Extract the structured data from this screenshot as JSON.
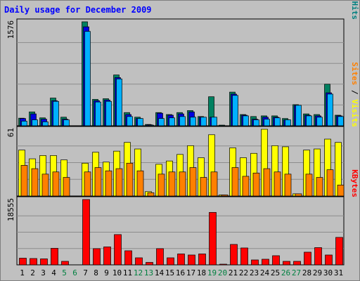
{
  "title": "Daily usage for December 2009",
  "panels": {
    "top": {
      "max_label": "1576",
      "legend": [
        {
          "text": "Pages",
          "color": "#00c0ff"
        },
        {
          "text": " / ",
          "color": "#000000"
        },
        {
          "text": "Files",
          "color": "#0000ff"
        },
        {
          "text": " / ",
          "color": "#000000"
        },
        {
          "text": "Hits",
          "color": "#008080"
        }
      ]
    },
    "mid": {
      "max_label": "61",
      "legend": [
        {
          "text": "Sites",
          "color": "#ff8000"
        },
        {
          "text": " / ",
          "color": "#000000"
        },
        {
          "text": "Visits",
          "color": "#ffff00"
        }
      ]
    },
    "bot": {
      "max_label": "18555",
      "legend": [
        {
          "text": "KBytes",
          "color": "#ff0000"
        }
      ]
    }
  },
  "colors": {
    "hits": "#008060",
    "files": "#0000e0",
    "pages": "#00b0ff",
    "visits": "#ffff00",
    "sites": "#ff8000",
    "kbytes": "#ff0000",
    "weekday_label": "#000000",
    "weekend_label": "#008040"
  },
  "chart_data": [
    {
      "type": "bar",
      "title": "Daily usage for December 2009",
      "categories": [
        "1",
        "2",
        "3",
        "4",
        "5",
        "6",
        "7",
        "8",
        "9",
        "10",
        "11",
        "12",
        "13",
        "14",
        "15",
        "16",
        "17",
        "18",
        "19",
        "20",
        "21",
        "22",
        "23",
        "24",
        "25",
        "26",
        "27",
        "28",
        "29",
        "30",
        "31"
      ],
      "weekend_days": [
        "5",
        "6",
        "12",
        "13",
        "19",
        "20",
        "26",
        "27"
      ],
      "ylim": [
        0,
        1576
      ],
      "series": [
        {
          "name": "Hits",
          "values": [
            115,
            210,
            120,
            420,
            130,
            5,
            1576,
            400,
            410,
            770,
            200,
            130,
            20,
            200,
            170,
            200,
            230,
            140,
            440,
            10,
            510,
            170,
            140,
            150,
            150,
            110,
            320,
            180,
            170,
            630,
            160
          ]
        },
        {
          "name": "Files",
          "values": [
            110,
            180,
            100,
            380,
            100,
            0,
            1500,
            380,
            390,
            730,
            170,
            110,
            15,
            190,
            160,
            180,
            210,
            130,
            130,
            0,
            480,
            160,
            100,
            130,
            130,
            90,
            310,
            160,
            150,
            500,
            150
          ]
        },
        {
          "name": "Pages",
          "values": [
            70,
            90,
            60,
            370,
            90,
            0,
            1430,
            360,
            370,
            710,
            140,
            110,
            10,
            110,
            120,
            140,
            130,
            130,
            130,
            0,
            460,
            150,
            90,
            100,
            120,
            90,
            310,
            150,
            130,
            480,
            140
          ]
        }
      ]
    },
    {
      "type": "bar",
      "categories": [
        "1",
        "2",
        "3",
        "4",
        "5",
        "6",
        "7",
        "8",
        "9",
        "10",
        "11",
        "12",
        "13",
        "14",
        "15",
        "16",
        "17",
        "18",
        "19",
        "20",
        "21",
        "22",
        "23",
        "24",
        "25",
        "26",
        "27",
        "28",
        "29",
        "30",
        "31"
      ],
      "ylim": [
        0,
        61
      ],
      "series": [
        {
          "name": "Visits",
          "values": [
            42,
            34,
            37,
            37,
            33,
            0,
            30,
            40,
            31,
            41,
            49,
            43,
            4,
            29,
            32,
            38,
            46,
            35,
            56,
            1,
            44,
            35,
            39,
            61,
            46,
            45,
            2,
            42,
            43,
            52,
            49
          ]
        },
        {
          "name": "Sites",
          "values": [
            28,
            25,
            20,
            22,
            17,
            0,
            22,
            26,
            23,
            25,
            30,
            23,
            3,
            20,
            22,
            22,
            26,
            17,
            22,
            1,
            26,
            18,
            21,
            25,
            22,
            20,
            2,
            20,
            17,
            24,
            10
          ]
        }
      ]
    },
    {
      "type": "bar",
      "categories": [
        "1",
        "2",
        "3",
        "4",
        "5",
        "6",
        "7",
        "8",
        "9",
        "10",
        "11",
        "12",
        "13",
        "14",
        "15",
        "16",
        "17",
        "18",
        "19",
        "20",
        "21",
        "22",
        "23",
        "24",
        "25",
        "26",
        "27",
        "28",
        "29",
        "30",
        "31"
      ],
      "ylim": [
        0,
        18555
      ],
      "series": [
        {
          "name": "KBytes",
          "values": [
            1900,
            1800,
            1700,
            4700,
            1000,
            0,
            18555,
            4600,
            5100,
            8600,
            4000,
            2000,
            700,
            4600,
            2000,
            3100,
            2800,
            3100,
            14900,
            200,
            5800,
            4800,
            1400,
            1600,
            2600,
            1000,
            1000,
            3600,
            4900,
            2800,
            7800
          ]
        }
      ]
    }
  ]
}
